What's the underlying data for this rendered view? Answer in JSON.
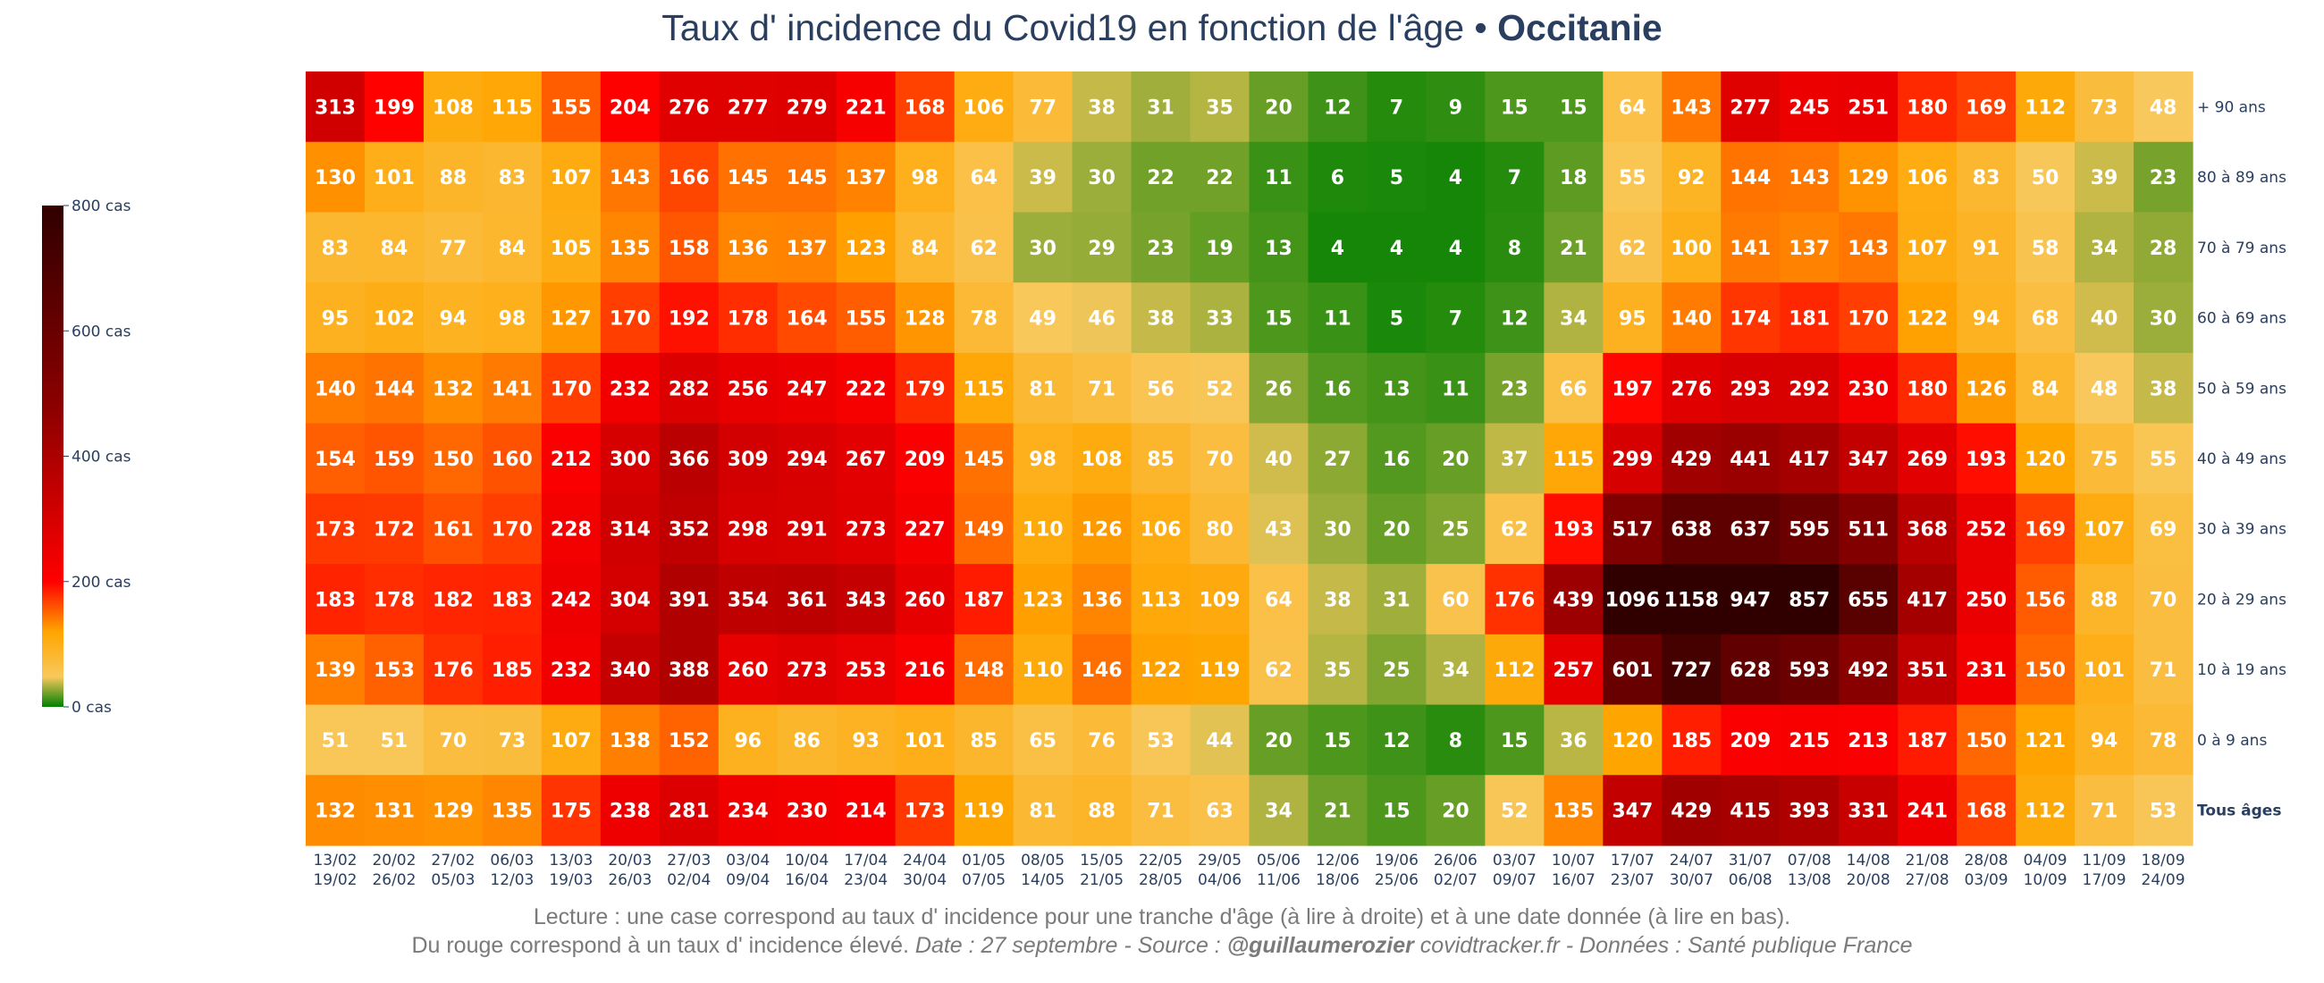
{
  "title": {
    "main": "Taux d' incidence du Covid19 en fonction de l'âge • ",
    "region": "Occitanie"
  },
  "footer": {
    "line1": "Lecture : une case correspond au taux d' incidence pour une tranche d'âge (à lire à droite) et à une date donnée (à lire en bas).",
    "line2_plain": "Du rouge correspond à un taux d' incidence élevé.  ",
    "line2_date_source": "Date : 27 septembre - Source : ",
    "line2_author": "@guillaumerozier",
    "line2_rest": " covidtracker.fr - Données : Santé publique France"
  },
  "chart_data": {
    "type": "heatmap",
    "title": "Taux d' incidence du Covid19 en fonction de l'âge • Occitanie",
    "x_labels": [
      [
        "13/02",
        "19/02"
      ],
      [
        "20/02",
        "26/02"
      ],
      [
        "27/02",
        "05/03"
      ],
      [
        "06/03",
        "12/03"
      ],
      [
        "13/03",
        "19/03"
      ],
      [
        "20/03",
        "26/03"
      ],
      [
        "27/03",
        "02/04"
      ],
      [
        "03/04",
        "09/04"
      ],
      [
        "10/04",
        "16/04"
      ],
      [
        "17/04",
        "23/04"
      ],
      [
        "24/04",
        "30/04"
      ],
      [
        "01/05",
        "07/05"
      ],
      [
        "08/05",
        "14/05"
      ],
      [
        "15/05",
        "21/05"
      ],
      [
        "22/05",
        "28/05"
      ],
      [
        "29/05",
        "04/06"
      ],
      [
        "05/06",
        "11/06"
      ],
      [
        "12/06",
        "18/06"
      ],
      [
        "19/06",
        "25/06"
      ],
      [
        "26/06",
        "02/07"
      ],
      [
        "03/07",
        "09/07"
      ],
      [
        "10/07",
        "16/07"
      ],
      [
        "17/07",
        "23/07"
      ],
      [
        "24/07",
        "30/07"
      ],
      [
        "31/07",
        "06/08"
      ],
      [
        "07/08",
        "13/08"
      ],
      [
        "14/08",
        "20/08"
      ],
      [
        "21/08",
        "27/08"
      ],
      [
        "28/08",
        "03/09"
      ],
      [
        "04/09",
        "10/09"
      ],
      [
        "11/09",
        "17/09"
      ],
      [
        "18/09",
        "24/09"
      ]
    ],
    "y_labels": [
      "+ 90 ans",
      "80 à 89 ans",
      "70 à 79 ans",
      "60 à 69 ans",
      "50 à 59 ans",
      "40 à 49 ans",
      "30 à 39 ans",
      "20 à 29 ans",
      "10 à 19 ans",
      "0 à 9 ans",
      "Tous âges"
    ],
    "z": [
      [
        313,
        199,
        108,
        115,
        155,
        204,
        276,
        277,
        279,
        221,
        168,
        106,
        77,
        38,
        31,
        35,
        20,
        12,
        7,
        9,
        15,
        15,
        64,
        143,
        277,
        245,
        251,
        180,
        169,
        112,
        73,
        48
      ],
      [
        130,
        101,
        88,
        83,
        107,
        143,
        166,
        145,
        145,
        137,
        98,
        64,
        39,
        30,
        22,
        22,
        11,
        6,
        5,
        4,
        7,
        18,
        55,
        92,
        144,
        143,
        129,
        106,
        83,
        50,
        39,
        23
      ],
      [
        83,
        84,
        77,
        84,
        105,
        135,
        158,
        136,
        137,
        123,
        84,
        62,
        30,
        29,
        23,
        19,
        13,
        4,
        4,
        4,
        8,
        21,
        62,
        100,
        141,
        137,
        143,
        107,
        91,
        58,
        34,
        28
      ],
      [
        95,
        102,
        94,
        98,
        127,
        170,
        192,
        178,
        164,
        155,
        128,
        78,
        49,
        46,
        38,
        33,
        15,
        11,
        5,
        7,
        12,
        34,
        95,
        140,
        174,
        181,
        170,
        122,
        94,
        68,
        40,
        30
      ],
      [
        140,
        144,
        132,
        141,
        170,
        232,
        282,
        256,
        247,
        222,
        179,
        115,
        81,
        71,
        56,
        52,
        26,
        16,
        13,
        11,
        23,
        66,
        197,
        276,
        293,
        292,
        230,
        180,
        126,
        84,
        48,
        38
      ],
      [
        154,
        159,
        150,
        160,
        212,
        300,
        366,
        309,
        294,
        267,
        209,
        145,
        98,
        108,
        85,
        70,
        40,
        27,
        16,
        20,
        37,
        115,
        299,
        429,
        441,
        417,
        347,
        269,
        193,
        120,
        75,
        55
      ],
      [
        173,
        172,
        161,
        170,
        228,
        314,
        352,
        298,
        291,
        273,
        227,
        149,
        110,
        126,
        106,
        80,
        43,
        30,
        20,
        25,
        62,
        193,
        517,
        638,
        637,
        595,
        511,
        368,
        252,
        169,
        107,
        69
      ],
      [
        183,
        178,
        182,
        183,
        242,
        304,
        391,
        354,
        361,
        343,
        260,
        187,
        123,
        136,
        113,
        109,
        64,
        38,
        31,
        60,
        176,
        439,
        1096,
        1158,
        947,
        857,
        655,
        417,
        250,
        156,
        88,
        70
      ],
      [
        139,
        153,
        176,
        185,
        232,
        340,
        388,
        260,
        273,
        253,
        216,
        148,
        110,
        146,
        122,
        119,
        62,
        35,
        25,
        34,
        112,
        257,
        601,
        727,
        628,
        593,
        492,
        351,
        231,
        150,
        101,
        71
      ],
      [
        51,
        51,
        70,
        73,
        107,
        138,
        152,
        96,
        86,
        93,
        101,
        85,
        65,
        76,
        53,
        44,
        20,
        15,
        12,
        8,
        15,
        36,
        120,
        185,
        209,
        215,
        213,
        187,
        150,
        121,
        94,
        78
      ],
      [
        132,
        131,
        129,
        135,
        175,
        238,
        281,
        234,
        230,
        214,
        173,
        119,
        81,
        88,
        71,
        63,
        34,
        21,
        15,
        20,
        52,
        135,
        347,
        429,
        415,
        393,
        331,
        241,
        168,
        112,
        71,
        53
      ]
    ],
    "zlim": [
      0,
      800
    ],
    "colorbar": {
      "ticks": [
        0,
        200,
        400,
        600,
        800
      ],
      "tick_labels": [
        "0 cas",
        "200 cas",
        "400 cas",
        "600 cas",
        "800 cas"
      ]
    },
    "colorscale": [
      [
        0,
        "#008000"
      ],
      [
        0.06,
        "#f8c85c"
      ],
      [
        0.15,
        "#ffa500"
      ],
      [
        0.25,
        "#ff0000"
      ],
      [
        0.6,
        "#8b0000"
      ],
      [
        1,
        "#300000"
      ]
    ],
    "bold_row_label": "Tous âges"
  }
}
